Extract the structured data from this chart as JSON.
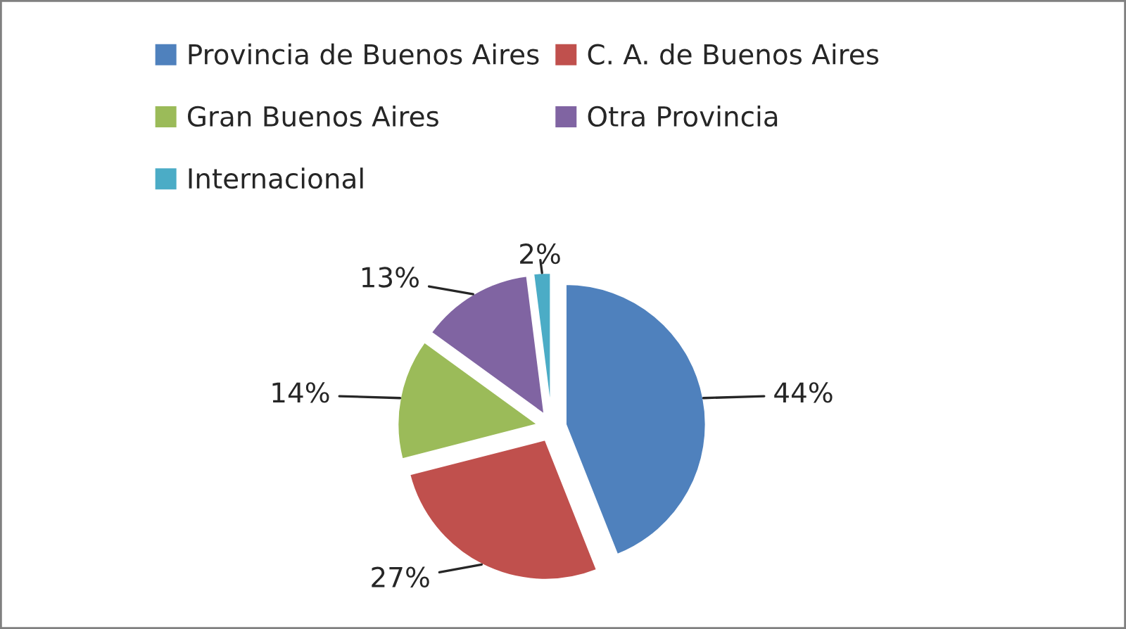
{
  "chart_data": {
    "type": "pie",
    "categories": [
      "Provincia de Buenos Aires",
      "C. A. de Buenos Aires",
      "Gran Buenos Aires",
      "Otra Provincia",
      "Internacional"
    ],
    "values": [
      44,
      27,
      14,
      13,
      2
    ],
    "colors": [
      "#4f81bd",
      "#c0504d",
      "#9bbb59",
      "#8064a2",
      "#4bacc6"
    ],
    "value_labels": [
      "44%",
      "27%",
      "14%",
      "13%",
      "2%"
    ],
    "legend": "top"
  }
}
